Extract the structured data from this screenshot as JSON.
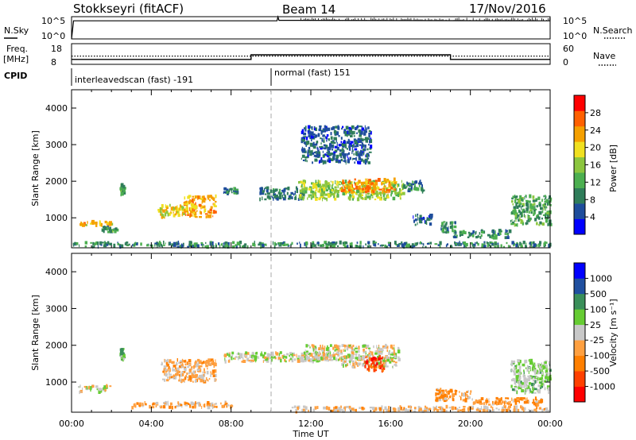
{
  "header": {
    "station": "Stokkseyri (fitACF)",
    "beam": "Beam 14",
    "date": "17/Nov/2016"
  },
  "top_panels": {
    "nsky_label": "N.Sky",
    "nsky_ticks": [
      "10^5",
      "10^0"
    ],
    "nsearch_label": "N.Search",
    "nsearch_ticks": [
      "10^5",
      "10^0"
    ],
    "freq_label_line1": "Freq.",
    "freq_label_line2": "[MHz]",
    "freq_ticks": [
      "18",
      "8"
    ],
    "nave_label": "Nave",
    "nave_ticks": [
      "60",
      "0"
    ],
    "cpid_label": "CPID",
    "cpid_segments": [
      {
        "name": "interleavedscan (fast) -191",
        "start_hour": 0,
        "end_hour": 10
      },
      {
        "name": "normal (fast) 151",
        "start_hour": 10,
        "end_hour": 24
      }
    ]
  },
  "colors": {
    "power_scale": [
      "#0000ff",
      "#1e4d9c",
      "#2f7d5a",
      "#4caf50",
      "#8cc63f",
      "#f0e020",
      "#f5a000",
      "#ff6000",
      "#ff0000"
    ],
    "velocity_scale": [
      "#ff0000",
      "#ff4000",
      "#ff7f00",
      "#ffa040",
      "#c8c8c8",
      "#66cc33",
      "#3a8f5a",
      "#2050a0",
      "#0000ff"
    ],
    "ground_scatter": "#bebebe"
  },
  "colorbars": {
    "power": {
      "label": "Power [dB]",
      "ticks": [
        "28",
        "24",
        "20",
        "16",
        "12",
        "8",
        "4"
      ]
    },
    "velocity": {
      "label": "Velocity [m s⁻¹]",
      "ticks": [
        "1000",
        "500",
        "100",
        "25",
        "-25",
        "-100",
        "-500",
        "-1000"
      ]
    }
  },
  "axes": {
    "ylabel": "Slant Range [km]",
    "xlabel": "Time UT",
    "yticks": [
      "4000",
      "3000",
      "2000",
      "1000"
    ],
    "xticks": [
      "00:00",
      "04:00",
      "08:00",
      "12:00",
      "16:00",
      "20:00",
      "00:00"
    ]
  },
  "chart_data": [
    {
      "type": "line",
      "panel": "N.Sky / N.Search",
      "x_range_hours": [
        0,
        24
      ],
      "series": [
        {
          "name": "N.Sky",
          "x": [
            0,
            0.1,
            10.3,
            10.35,
            10.4,
            24
          ],
          "y": [
            1,
            12000,
            12000,
            90000,
            15000,
            12000
          ]
        }
      ]
    },
    {
      "type": "line",
      "panel": "Freq / Nave",
      "x_range_hours": [
        0,
        24
      ],
      "series": [
        {
          "name": "Freq",
          "x": [
            0,
            9,
            9,
            19,
            19,
            24
          ],
          "y": [
            10.4,
            10.4,
            12.6,
            12.6,
            10.4,
            10.4
          ]
        },
        {
          "name": "Nave",
          "x": [
            0,
            24
          ],
          "y": [
            24,
            24
          ]
        }
      ]
    },
    {
      "type": "heatmap",
      "title": "Power [dB]",
      "xlabel": "Time UT",
      "ylabel": "Slant Range [km]",
      "xlim_hours": [
        0,
        24
      ],
      "ylim_km": [
        180,
        4500
      ],
      "color_range": [
        0,
        30
      ],
      "regions": [
        {
          "t": [
            0.2,
            2.0
          ],
          "r": [
            780,
            900
          ],
          "value": 20
        },
        {
          "t": [
            1.5,
            2.3
          ],
          "r": [
            600,
            750
          ],
          "value": 10
        },
        {
          "t": [
            0.0,
            24.0
          ],
          "r": [
            200,
            330
          ],
          "value": 9
        },
        {
          "t": [
            4.3,
            5.6
          ],
          "r": [
            1000,
            1360
          ],
          "value": 19
        },
        {
          "t": [
            5.6,
            7.2
          ],
          "r": [
            1020,
            1600
          ],
          "value": 22
        },
        {
          "t": [
            2.4,
            2.6
          ],
          "r": [
            1600,
            1900
          ],
          "value": 10
        },
        {
          "t": [
            7.6,
            8.3
          ],
          "r": [
            1650,
            1800
          ],
          "value": 9
        },
        {
          "t": [
            9.4,
            11.6
          ],
          "r": [
            1500,
            1820
          ],
          "value": 7
        },
        {
          "t": [
            11.3,
            16.6
          ],
          "r": [
            1500,
            2000
          ],
          "value": 15
        },
        {
          "t": [
            13.5,
            16.2
          ],
          "r": [
            1700,
            2050
          ],
          "value": 22
        },
        {
          "t": [
            16.6,
            17.6
          ],
          "r": [
            1700,
            2000
          ],
          "value": 9
        },
        {
          "t": [
            11.5,
            15.0
          ],
          "r": [
            2500,
            3500
          ],
          "value": 6
        },
        {
          "t": [
            17.1,
            18.1
          ],
          "r": [
            800,
            1100
          ],
          "value": 6
        },
        {
          "t": [
            18.4,
            19.3
          ],
          "r": [
            600,
            900
          ],
          "value": 10
        },
        {
          "t": [
            19.1,
            22.0
          ],
          "r": [
            450,
            650
          ],
          "value": 9
        },
        {
          "t": [
            22.0,
            24.0
          ],
          "r": [
            800,
            1600
          ],
          "value": 11
        }
      ]
    },
    {
      "type": "heatmap",
      "title": "Velocity [m s-1]",
      "xlabel": "Time UT",
      "ylabel": "Slant Range [km]",
      "xlim_hours": [
        0,
        24
      ],
      "ylim_km": [
        180,
        4500
      ],
      "color_range": [
        -1000,
        1000
      ],
      "regions": [
        {
          "t": [
            0.3,
            1.9
          ],
          "r": [
            720,
            900
          ],
          "value": 0
        },
        {
          "t": [
            2.4,
            2.6
          ],
          "r": [
            1600,
            1900
          ],
          "value": 300
        },
        {
          "t": [
            3.0,
            8.0
          ],
          "r": [
            300,
            450
          ],
          "value": -200
        },
        {
          "t": [
            4.4,
            7.2
          ],
          "r": [
            1000,
            1600
          ],
          "value": -150
        },
        {
          "t": [
            7.6,
            13.5
          ],
          "r": [
            1550,
            1800
          ],
          "value": 0
        },
        {
          "t": [
            11.6,
            16.4
          ],
          "r": [
            1600,
            2000
          ],
          "value": 0
        },
        {
          "t": [
            13.5,
            16.4
          ],
          "r": [
            1400,
            1700
          ],
          "value": 0
        },
        {
          "t": [
            14.6,
            15.6
          ],
          "r": [
            1300,
            1700
          ],
          "value": -700
        },
        {
          "t": [
            11.0,
            24.0
          ],
          "r": [
            200,
            330
          ],
          "value": -150
        },
        {
          "t": [
            18.2,
            20.0
          ],
          "r": [
            500,
            800
          ],
          "value": -300
        },
        {
          "t": [
            20.0,
            23.6
          ],
          "r": [
            380,
            560
          ],
          "value": -300
        },
        {
          "t": [
            22.0,
            24.0
          ],
          "r": [
            700,
            1600
          ],
          "value": 150
        }
      ]
    }
  ]
}
